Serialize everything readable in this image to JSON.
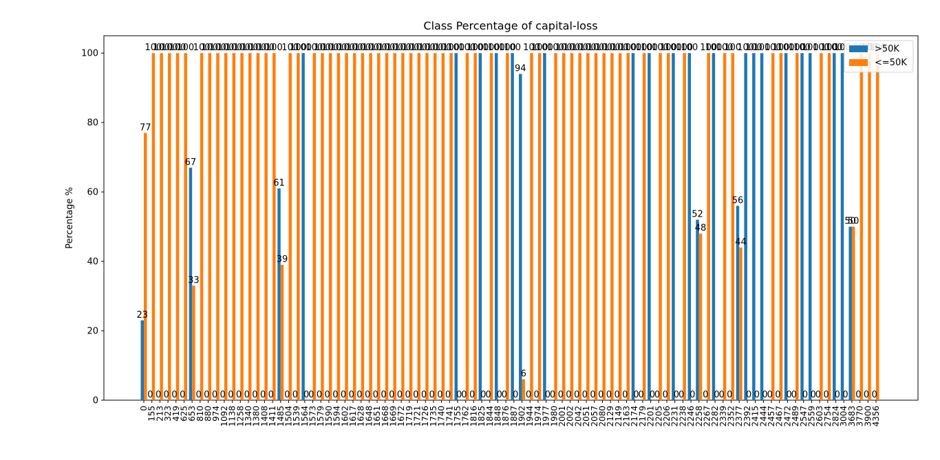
{
  "chart_data": {
    "type": "bar",
    "title": "Class Percentage of capital-loss",
    "xlabel": "",
    "ylabel": "Percentage %",
    "ylim": [
      0,
      105
    ],
    "yticks": [
      0,
      20,
      40,
      60,
      80,
      100
    ],
    "grid": false,
    "legend_position": "top-right",
    "categories": [
      "0",
      "155",
      "213",
      "323",
      "419",
      "625",
      "653",
      "810",
      "880",
      "974",
      "1092",
      "1138",
      "1258",
      "1340",
      "1380",
      "1408",
      "1411",
      "1485",
      "1504",
      "1539",
      "1564",
      "1573",
      "1579",
      "1590",
      "1594",
      "1602",
      "1617",
      "1628",
      "1648",
      "1651",
      "1668",
      "1669",
      "1672",
      "1719",
      "1721",
      "1726",
      "1735",
      "1740",
      "1741",
      "1755",
      "1762",
      "1816",
      "1825",
      "1844",
      "1848",
      "1876",
      "1887",
      "1902",
      "1944",
      "1974",
      "1977",
      "1980",
      "2001",
      "2002",
      "2042",
      "2051",
      "2057",
      "2080",
      "2129",
      "2149",
      "2163",
      "2174",
      "2179",
      "2201",
      "2205",
      "2206",
      "2231",
      "2238",
      "2246",
      "2258",
      "2267",
      "2282",
      "2339",
      "2352",
      "2377",
      "2392",
      "2415",
      "2444",
      "2457",
      "2467",
      "2472",
      "2489",
      "2547",
      "2559",
      "2603",
      "2754",
      "2824",
      "3004",
      "3683",
      "3770",
      "3900",
      "4356"
    ],
    "series": [
      {
        "name": ">50K",
        "color": "#1f77b4",
        "values": [
          23,
          0,
          0,
          0,
          0,
          0,
          67,
          0,
          0,
          0,
          0,
          0,
          0,
          0,
          0,
          0,
          0,
          61,
          0,
          0,
          100,
          0,
          0,
          0,
          0,
          0,
          0,
          0,
          0,
          0,
          0,
          0,
          0,
          0,
          0,
          0,
          0,
          0,
          0,
          100,
          0,
          0,
          100,
          0,
          100,
          0,
          100,
          94,
          0,
          0,
          100,
          0,
          0,
          0,
          0,
          0,
          0,
          0,
          0,
          0,
          0,
          100,
          0,
          100,
          0,
          0,
          100,
          0,
          100,
          52,
          0,
          100,
          0,
          0,
          56,
          100,
          100,
          100,
          0,
          0,
          100,
          0,
          100,
          100,
          0,
          0,
          100,
          100,
          50,
          0,
          0,
          0
        ]
      },
      {
        "name": "<=50K",
        "color": "#ff7f0e",
        "values": [
          77,
          100,
          100,
          100,
          100,
          100,
          33,
          100,
          100,
          100,
          100,
          100,
          100,
          100,
          100,
          100,
          100,
          39,
          100,
          100,
          0,
          100,
          100,
          100,
          100,
          100,
          100,
          100,
          100,
          100,
          100,
          100,
          100,
          100,
          100,
          100,
          100,
          100,
          100,
          0,
          100,
          100,
          0,
          100,
          0,
          100,
          0,
          6,
          100,
          100,
          0,
          100,
          100,
          100,
          100,
          100,
          100,
          100,
          100,
          100,
          100,
          0,
          100,
          0,
          100,
          100,
          0,
          100,
          0,
          48,
          100,
          0,
          100,
          100,
          44,
          0,
          0,
          0,
          100,
          100,
          0,
          100,
          0,
          0,
          100,
          100,
          0,
          0,
          50,
          100,
          100,
          100
        ]
      }
    ]
  }
}
